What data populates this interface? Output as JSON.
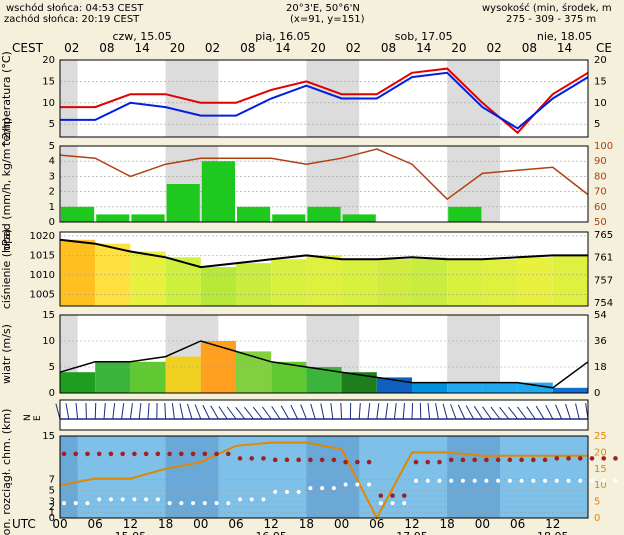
{
  "header": {
    "sunrise": "wschód słońca: 04:53 CEST",
    "sunset": "zachód słońca: 20:19 CEST",
    "coords": "20°3'E, 50°6'N",
    "grid": "(x=91, y=151)",
    "altitude_label": "wysokość (min, środek, m",
    "altitude_values": "275 - 309 - 375 m"
  },
  "timezone_top": "CEST",
  "timezone_bottom": "UTC",
  "days_top": [
    "czw, 15.05",
    "pią, 16.05",
    "sob, 17.05",
    "nie, 18.05"
  ],
  "hours_top": [
    "02",
    "08",
    "14",
    "20",
    "02",
    "08",
    "14",
    "20",
    "02",
    "08",
    "14",
    "20",
    "02",
    "08",
    "14",
    "CE"
  ],
  "hours_bottom": [
    "00",
    "06",
    "12",
    "18",
    "00",
    "06",
    "12",
    "18",
    "00",
    "06",
    "12",
    "18",
    "00",
    "06",
    "12"
  ],
  "days_bottom": [
    "15.05",
    "16.05",
    "17.05",
    "18.05"
  ],
  "colors": {
    "background": "#f4f0dc",
    "night_band": "#dcdcdc",
    "temperature": "#e00000",
    "dew_point": "#0020e0",
    "precip_bar": "#1ec81e",
    "humidity": "#b04010",
    "pressure_line": "#000000",
    "wind_line": "#000000",
    "cloud_bg": "#7ec0e8",
    "ceiling": "#e08800",
    "cloud_dot": "#a02020"
  },
  "chart_data": [
    {
      "type": "line",
      "ylabel": "temperatura (°C)",
      "x": [
        0,
        6,
        12,
        18,
        24,
        30,
        36,
        42,
        48,
        54,
        60,
        66,
        72,
        78,
        84,
        90
      ],
      "series": [
        {
          "values": [
            9,
            9,
            12,
            12,
            10,
            10,
            13,
            15,
            12,
            12,
            17,
            18,
            10,
            3,
            12,
            17
          ]
        },
        {
          "values": [
            6,
            6,
            10,
            9,
            7,
            7,
            11,
            14,
            11,
            11,
            16,
            17,
            9,
            4,
            11,
            16
          ]
        }
      ],
      "ylim": [
        2,
        20
      ],
      "yticks": [
        5,
        10,
        15,
        20
      ]
    },
    {
      "type": "bar",
      "ylabel": "opad (mm/h, kg/m^2/h)",
      "x": [
        0,
        6,
        12,
        18,
        24,
        30,
        36,
        42,
        48,
        54,
        60,
        66,
        72,
        78,
        84,
        90
      ],
      "values": [
        1,
        0.5,
        0.5,
        2.5,
        4,
        1,
        0.5,
        1,
        0.5,
        0,
        0,
        1,
        0,
        0,
        0,
        0
      ],
      "humidity": [
        94,
        92,
        80,
        88,
        92,
        92,
        92,
        88,
        92,
        98,
        88,
        65,
        82,
        84,
        86,
        68
      ],
      "ylim": [
        0,
        5
      ],
      "yticks": [
        0,
        1,
        2,
        3,
        4,
        5
      ],
      "y2lim": [
        50,
        100
      ],
      "y2ticks": [
        50,
        60,
        70,
        80,
        90,
        100
      ]
    },
    {
      "type": "area",
      "ylabel": "ciśnienie (hPa)",
      "x": [
        0,
        6,
        12,
        18,
        24,
        30,
        36,
        42,
        48,
        54,
        60,
        66,
        72,
        78,
        84,
        90
      ],
      "values": [
        1019,
        1018,
        1016,
        1014.5,
        1012,
        1013,
        1014,
        1015,
        1014,
        1014,
        1014.5,
        1014,
        1014,
        1014.5,
        1015,
        1015
      ],
      "ylim": [
        1002,
        1021
      ],
      "yticks": [
        1005,
        1010,
        1015,
        1020
      ],
      "y2ticks": [
        754,
        757,
        761,
        765
      ]
    },
    {
      "type": "area",
      "ylabel": "wiatr (m/s)",
      "x": [
        0,
        6,
        12,
        18,
        24,
        30,
        36,
        42,
        48,
        54,
        60,
        66,
        72,
        78,
        84,
        90
      ],
      "values": [
        4,
        6,
        6,
        7,
        10,
        8,
        6,
        5,
        4,
        3,
        2,
        2,
        2,
        2,
        1,
        6
      ],
      "ylim": [
        0,
        15
      ],
      "yticks": [
        0,
        5,
        10,
        15
      ],
      "y2ticks": [
        0,
        18,
        36,
        54
      ]
    },
    {
      "type": "scatter",
      "ylabel": "pion. rozciągł. chm. (km)",
      "x": [
        0,
        6,
        12,
        18,
        24,
        30,
        36,
        42,
        48,
        54,
        60,
        66,
        72,
        78,
        84,
        90
      ],
      "ceiling": [
        10,
        12,
        12,
        15,
        17,
        22,
        23,
        23,
        21,
        0,
        20,
        20,
        19,
        19,
        19,
        19
      ],
      "cloud_top": [
        8.6,
        8.6,
        8.6,
        8.6,
        8.6,
        8,
        7.8,
        7.8,
        7.5,
        3,
        7.5,
        7.8,
        7.8,
        7.8,
        8,
        8
      ],
      "cloud_base": [
        2,
        2.5,
        2.5,
        2,
        2,
        2.5,
        3.5,
        4,
        4.5,
        2,
        5,
        5,
        5,
        5,
        5,
        5
      ],
      "ylim": [
        0,
        15
      ],
      "yticks": [
        0,
        1,
        2,
        3,
        5,
        7,
        15
      ],
      "y2ticks": [
        0,
        5,
        10,
        15,
        20,
        25
      ]
    }
  ]
}
